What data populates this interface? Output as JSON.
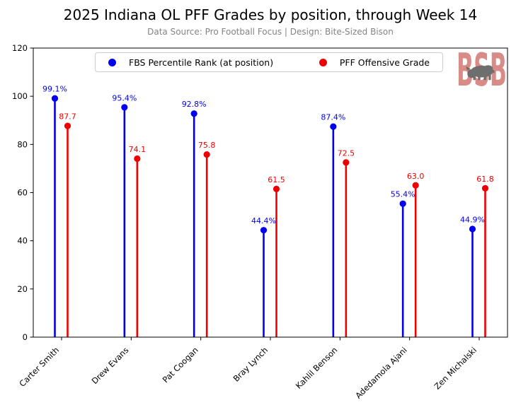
{
  "header": {
    "title": "2025 Indiana OL PFF Grades by position, through Week 14",
    "subtitle": "Data Source: Pro Football Focus | Design: Bite-Sized Bison"
  },
  "legend": [
    {
      "label": "FBS Percentile Rank (at position)",
      "color": "#0000ee"
    },
    {
      "label": "PFF Offensive Grade",
      "color": "#ee0000"
    }
  ],
  "logo": {
    "text": "BSB",
    "letters_color": "#d98b87",
    "bison_color": "#6e6e6e"
  },
  "chart_data": {
    "type": "stem",
    "title": "2025 Indiana OL PFF Grades by position, through Week 14",
    "subtitle": "Data Source: Pro Football Focus | Design: Bite-Sized Bison",
    "categories": [
      "Carter Smith",
      "Drew Evans",
      "Pat Coogan",
      "Bray Lynch",
      "Kahlil Benson",
      "Adedamola Ajani",
      "Zen Michalski"
    ],
    "series": [
      {
        "name": "FBS Percentile Rank (at position)",
        "color": "#0000ee",
        "values": [
          99.1,
          95.4,
          92.8,
          44.4,
          87.4,
          55.4,
          44.9
        ],
        "labels": [
          "99.1%",
          "95.4%",
          "92.8%",
          "44.4%",
          "87.4%",
          "55.4%",
          "44.9%"
        ]
      },
      {
        "name": "PFF Offensive Grade",
        "color": "#ee0000",
        "values": [
          87.7,
          74.1,
          75.8,
          61.5,
          72.5,
          63.0,
          61.8
        ],
        "labels": [
          "87.7",
          "74.1",
          "75.8",
          "61.5",
          "72.5",
          "63.0",
          "61.8"
        ]
      }
    ],
    "xlabel": "",
    "ylabel": "",
    "ylim": [
      0,
      120
    ],
    "yticks": [
      0,
      20,
      40,
      60,
      80,
      100,
      120
    ],
    "grid": false,
    "legend_position": "top-center"
  }
}
